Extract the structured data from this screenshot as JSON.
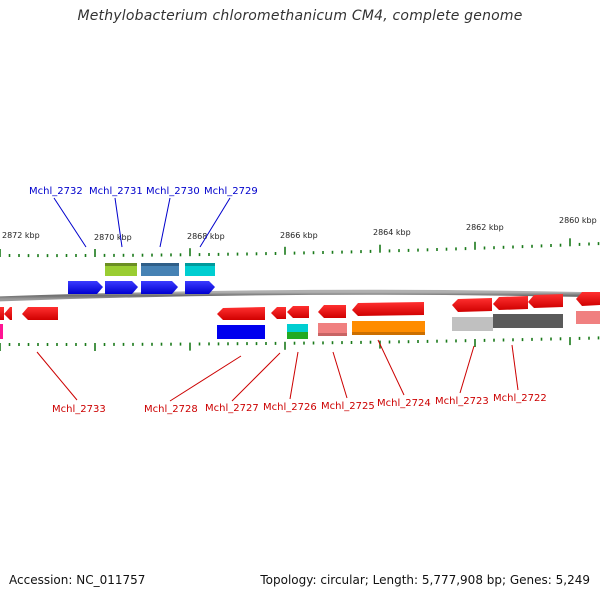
{
  "title": "Methylobacterium chloromethanicum CM4, complete genome",
  "footer": {
    "accession": "Accession: NC_011757",
    "summary": "Topology: circular; Length: 5,777,908 bp; Genes: 5,249"
  },
  "colors": {
    "forward_labels": "#0000cc",
    "reverse_labels": "#cc0000",
    "ticks": "#1a7a1a",
    "backbone": "#7a7a7a"
  },
  "ruler_labels": [
    "2872 kbp",
    "2870 kbp",
    "2868 kbp",
    "2866 kbp",
    "2864 kbp",
    "2862 kbp",
    "2860 kbp"
  ],
  "forward_genes": [
    {
      "name": "Mchl_2732",
      "color": "#0000ff"
    },
    {
      "name": "Mchl_2731",
      "color": "#0000ff",
      "feature_color": "#9acd32"
    },
    {
      "name": "Mchl_2730",
      "color": "#0000ff",
      "feature_color": "#4682b4"
    },
    {
      "name": "Mchl_2729",
      "color": "#0000ff",
      "feature_color": "#00ced1"
    }
  ],
  "reverse_genes": [
    {
      "name": "Mchl_2733",
      "color": "#ff0000"
    },
    {
      "name": "Mchl_2728",
      "color": "#ff0000",
      "feature_color": "#0000ff"
    },
    {
      "name": "Mchl_2727",
      "color": "#ff0000"
    },
    {
      "name": "Mchl_2726",
      "color": "#ff0000",
      "feature_color": "#00ced1"
    },
    {
      "name": "Mchl_2725",
      "color": "#ff0000",
      "feature_color": "#f08080"
    },
    {
      "name": "Mchl_2724",
      "color": "#ff0000",
      "feature_color": "#ff8c00"
    },
    {
      "name": "Mchl_2723",
      "color": "#ff0000",
      "feature_color": "#bbbbbb"
    },
    {
      "name": "Mchl_2722",
      "color": "#ff0000",
      "feature_color": "#555555"
    }
  ]
}
